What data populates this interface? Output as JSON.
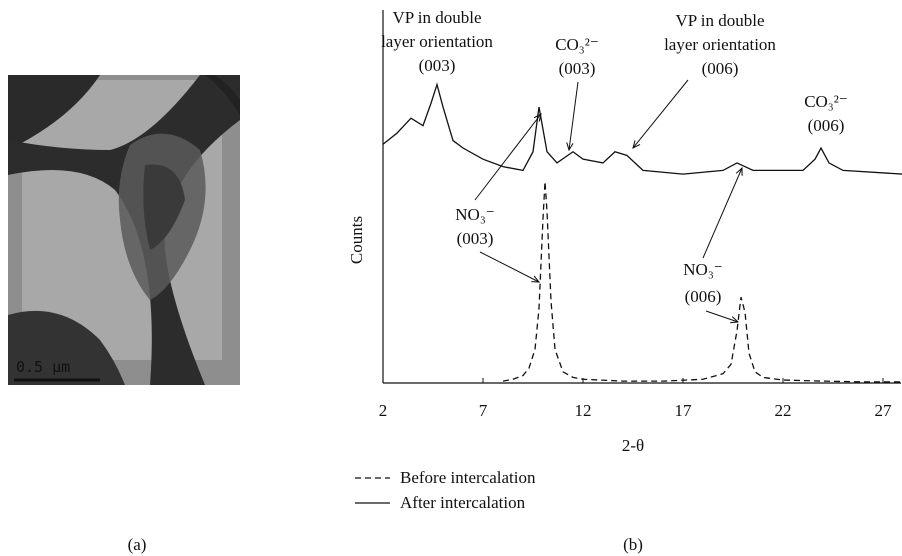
{
  "image_panel": {
    "scale_bar": "0.5 μm",
    "label": "(a)"
  },
  "chart_label": "(b)",
  "chart_data": {
    "type": "line",
    "x_label": "2-θ",
    "y_label": "Counts",
    "xlim": [
      2,
      28
    ],
    "ylim": [
      0,
      100
    ],
    "xticks": [
      2,
      7,
      12,
      17,
      22,
      27
    ],
    "series": [
      {
        "name": "Before intercalation",
        "color": "#111111",
        "dash": "6,4",
        "x": [
          8,
          8.5,
          9,
          9.3,
          9.6,
          9.8,
          10,
          10.1,
          10.2,
          10.4,
          10.6,
          11,
          11.5,
          12,
          14,
          16,
          18,
          19,
          19.4,
          19.7,
          19.9,
          20.1,
          20.3,
          20.6,
          21,
          22,
          24,
          26,
          28
        ],
        "values": [
          0.5,
          1,
          2,
          4,
          9,
          20,
          44,
          54,
          46,
          22,
          9,
          3,
          1.5,
          1,
          0.5,
          0.5,
          1,
          2.5,
          5,
          14,
          23,
          19,
          8,
          3,
          1.5,
          0.8,
          0.5,
          0.3,
          0.3
        ]
      },
      {
        "name": "After intercalation",
        "color": "#111111",
        "x": [
          2,
          2.7,
          3.4,
          4,
          4.4,
          4.7,
          5,
          5.5,
          6,
          7,
          8,
          9,
          9.5,
          9.8,
          10.2,
          10.7,
          11.5,
          12,
          13,
          13.6,
          14.2,
          15,
          17,
          19,
          19.7,
          20.5,
          23,
          23.6,
          23.9,
          24.3,
          25,
          28
        ],
        "values": [
          64,
          67,
          71,
          69,
          75,
          80,
          74,
          65,
          63,
          60,
          58,
          57,
          62,
          74,
          62,
          59,
          62,
          60,
          59,
          62,
          61,
          57,
          56,
          57,
          59,
          57,
          57,
          60,
          63,
          59,
          57,
          56
        ]
      }
    ],
    "annotations": [
      {
        "lines": [
          "VP in double",
          "layer orientation",
          "(003)"
        ]
      },
      {
        "lines": [
          "CO₃²⁻",
          "(003)"
        ]
      },
      {
        "lines": [
          "VP in double",
          "layer orientation",
          "(006)"
        ]
      },
      {
        "lines": [
          "CO₃²⁻",
          "(006)"
        ]
      },
      {
        "lines": [
          "NO₃⁻",
          "(003)"
        ]
      },
      {
        "lines": [
          "NO₃⁻",
          "(006)"
        ]
      }
    ]
  }
}
